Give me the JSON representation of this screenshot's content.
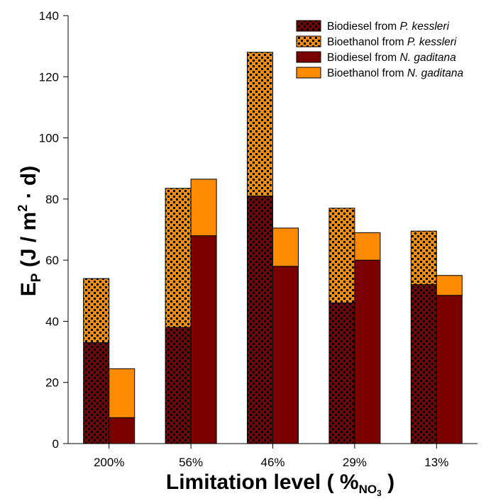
{
  "chart_data": {
    "type": "bar",
    "stacked": true,
    "grouped": true,
    "categories": [
      "200%",
      "56%",
      "46%",
      "29%",
      "13%"
    ],
    "ylabel": {
      "main": "E",
      "sub": "P",
      "units_pre": " (J / m",
      "sup": "2",
      "units_post": " · d)"
    },
    "xlabel": {
      "main": "Limitation level ( %",
      "sub": "NO",
      "subsub": "3",
      "post": " )"
    },
    "ylim": [
      0,
      140
    ],
    "yticks": [
      0,
      20,
      40,
      60,
      80,
      100,
      120,
      140
    ],
    "grid": false,
    "legend_position": "top-right",
    "groups": [
      {
        "name": "P. kessleri",
        "series": [
          {
            "name_prefix": "Biodiesel from ",
            "name_species": "P. kessleri",
            "values": [
              33,
              38,
              81,
              46,
              52
            ],
            "color": "#7a0000",
            "pattern": "dots",
            "pattern_color": "#000000"
          },
          {
            "name_prefix": "Bioethanol from ",
            "name_species": "P. kessleri",
            "values": [
              21,
              45.5,
              47,
              31,
              17.5
            ],
            "color": "#ff8c00",
            "pattern": "dots",
            "pattern_color": "#000000"
          }
        ]
      },
      {
        "name": "N. gaditana",
        "series": [
          {
            "name_prefix": "Biodiesel from ",
            "name_species": "N. gaditana",
            "values": [
              8.5,
              68,
              58,
              60,
              48.5
            ],
            "color": "#7a0000",
            "pattern": "none"
          },
          {
            "name_prefix": "Bioethanol from ",
            "name_species": "N. gaditana",
            "values": [
              16,
              18.5,
              12.5,
              9,
              6.5
            ],
            "color": "#ff8c00",
            "pattern": "none"
          }
        ]
      }
    ]
  }
}
